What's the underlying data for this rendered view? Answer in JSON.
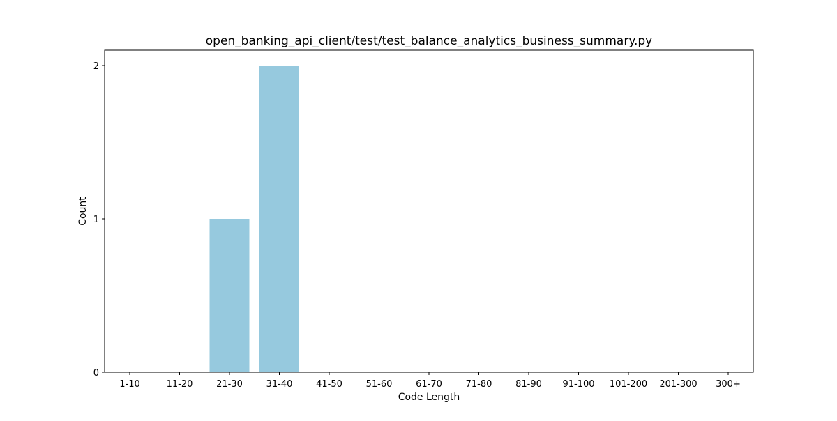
{
  "chart_data": {
    "type": "bar",
    "title": "open_banking_api_client/test/test_balance_analytics_business_summary.py",
    "xlabel": "Code Length",
    "ylabel": "Count",
    "categories": [
      "1-10",
      "11-20",
      "21-30",
      "31-40",
      "41-50",
      "51-60",
      "61-70",
      "71-80",
      "81-90",
      "91-100",
      "101-200",
      "201-300",
      "300+"
    ],
    "values": [
      0,
      0,
      1,
      2,
      0,
      0,
      0,
      0,
      0,
      0,
      0,
      0,
      0
    ],
    "yticks": [
      0,
      1,
      2
    ],
    "ylim": [
      0,
      2.1
    ],
    "grid": false,
    "bar_color": "#96c9de"
  }
}
